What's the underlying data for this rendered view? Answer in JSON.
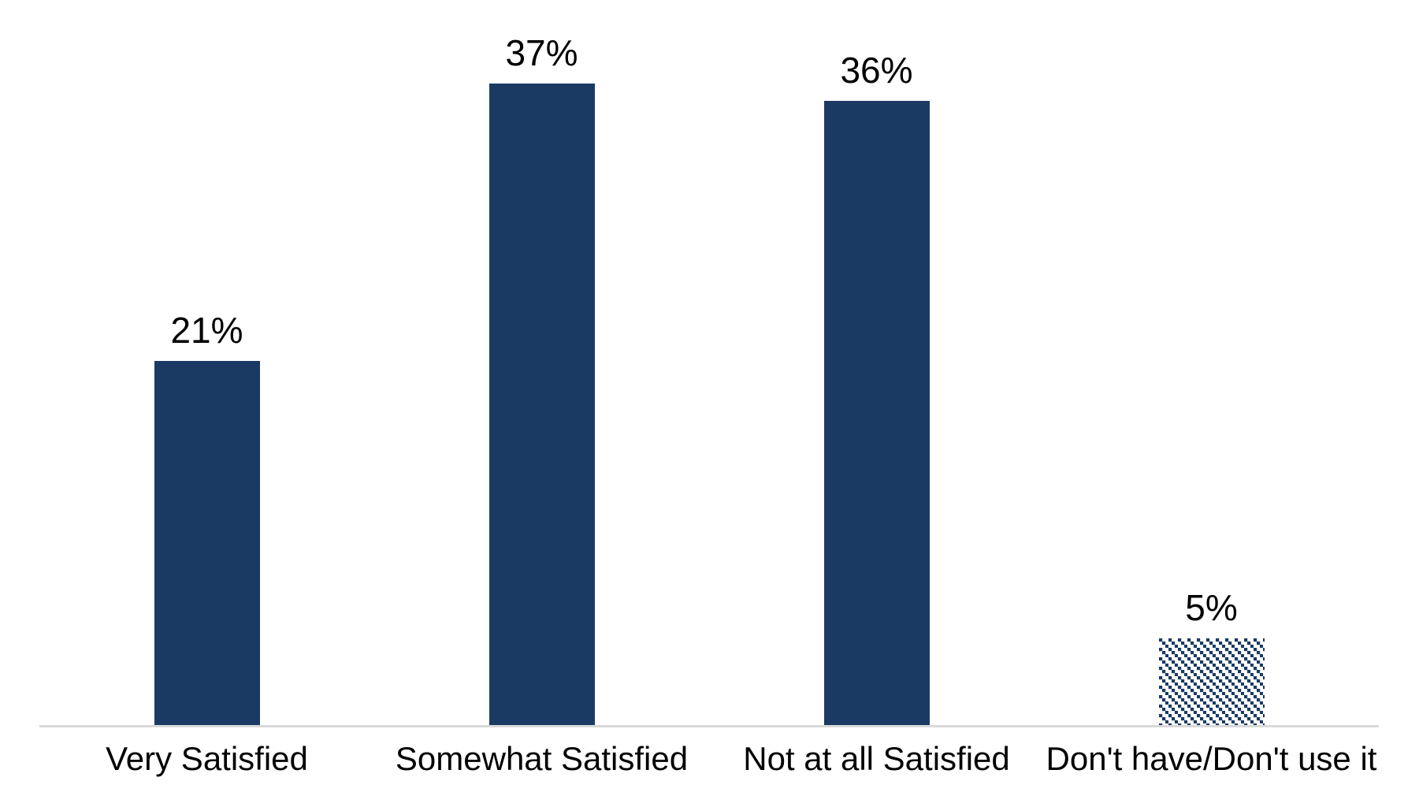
{
  "chart_data": {
    "type": "bar",
    "title": "",
    "xlabel": "",
    "ylabel": "",
    "categories": [
      "Very Satisfied",
      "Somewhat Satisfied",
      "Not at all Satisfied",
      "Don't have/Don't use it"
    ],
    "values": [
      21,
      37,
      36,
      5
    ],
    "value_labels": [
      "21%",
      "37%",
      "36%",
      "5%"
    ],
    "unit": "percent",
    "ylim": [
      0,
      40
    ],
    "grid": false,
    "legend": false,
    "axis": {
      "y_axis_visible": false,
      "x_axis_line_visible": true
    },
    "bar_fills": [
      "solid",
      "solid",
      "solid",
      "diagonal-hatch"
    ],
    "hatch_style": "dotted-downward-diagonal",
    "colors": {
      "bar": "#1A3A64",
      "value_label": "#000000",
      "category_label": "#000000",
      "axis_line": "#D9D9D9",
      "background": "#FFFFFF"
    }
  }
}
